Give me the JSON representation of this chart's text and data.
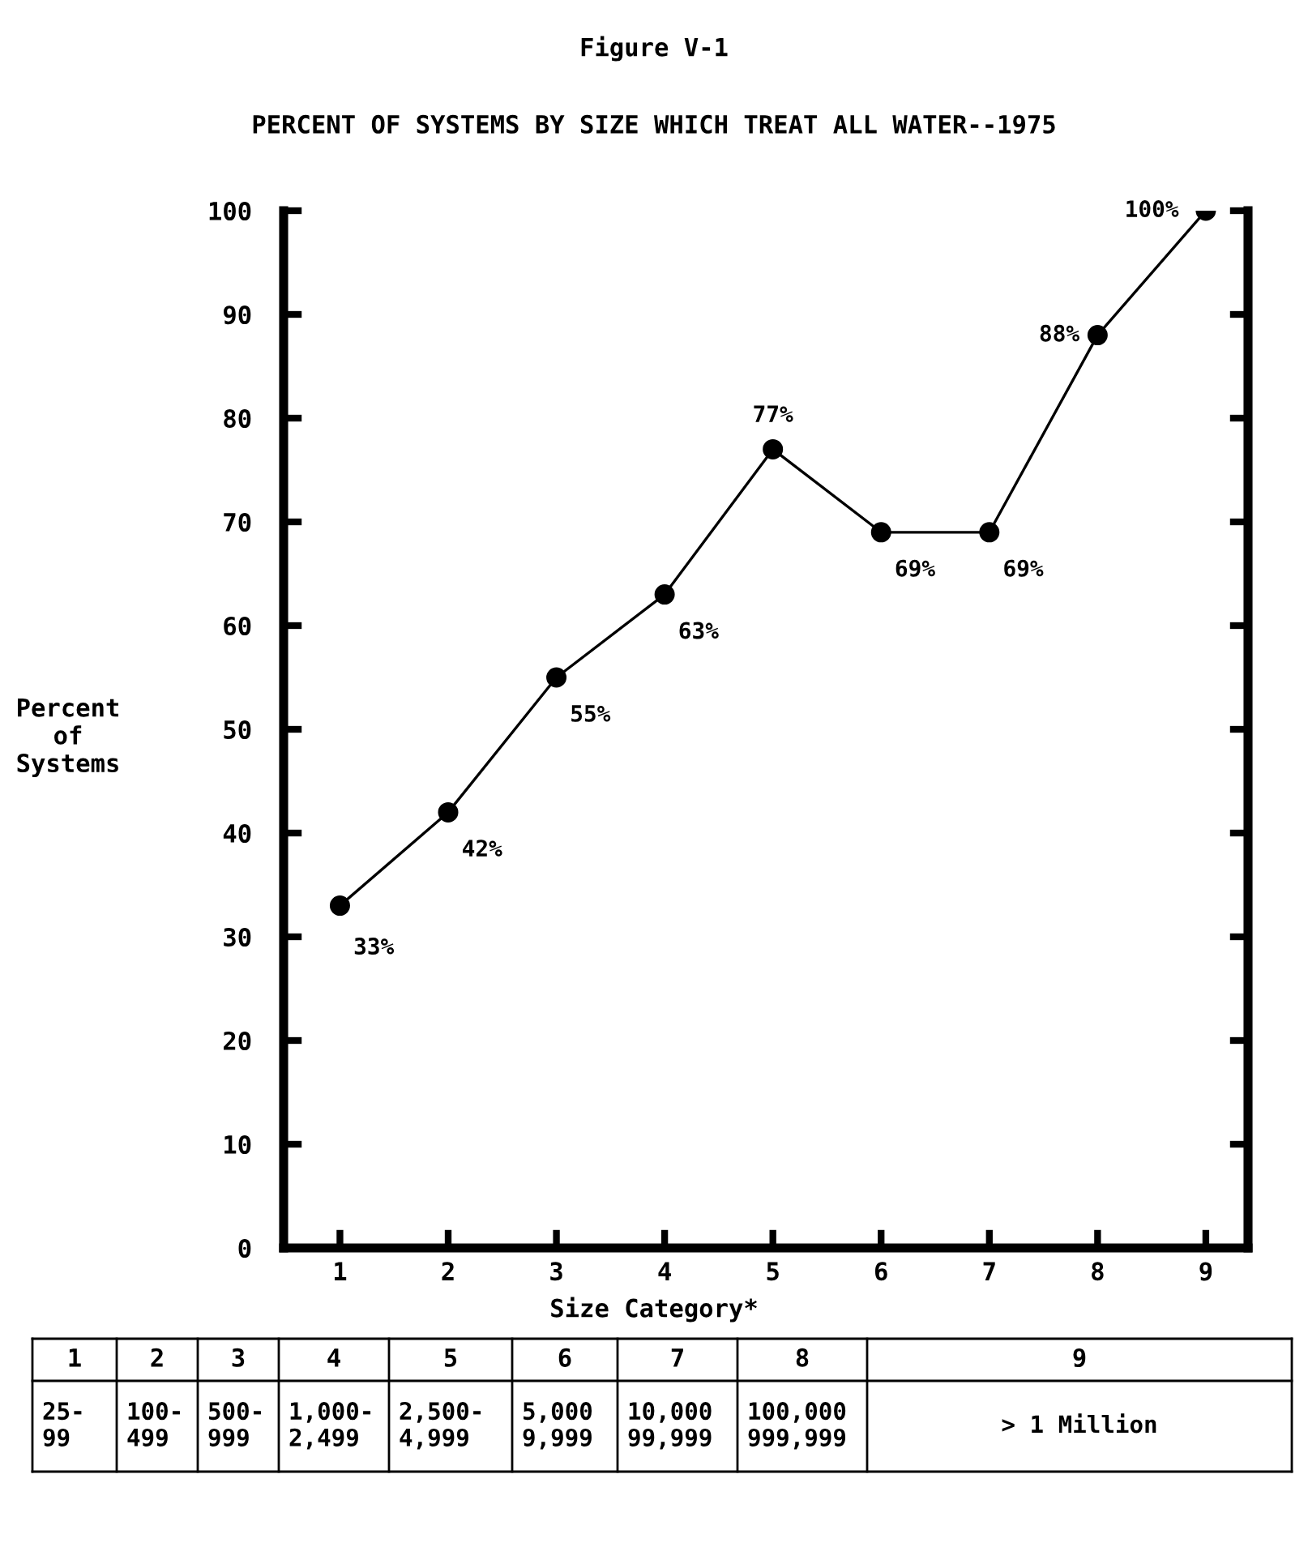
{
  "chart_data": {
    "type": "line",
    "title": "Figure V-1",
    "subtitle": "PERCENT OF SYSTEMS BY SIZE WHICH TREAT ALL WATER--1975",
    "xlabel": "Size Category*",
    "ylabel": "Percent\nof\nSystems",
    "categories": [
      "1",
      "2",
      "3",
      "4",
      "5",
      "6",
      "7",
      "8",
      "9"
    ],
    "series": [
      {
        "color": "#000000",
        "values": [
          33,
          42,
          55,
          63,
          77,
          69,
          69,
          88,
          100
        ],
        "value_labels": [
          "33%",
          "42%",
          "55%",
          "63%",
          "77%",
          "69%",
          "69%",
          "88%",
          "100%"
        ]
      }
    ],
    "ylim": [
      0,
      100
    ],
    "yticks": [
      0,
      10,
      20,
      30,
      40,
      50,
      60,
      70,
      80,
      90,
      100
    ],
    "marker": "circle",
    "line_style": "solid",
    "grid": false,
    "legend": false,
    "annotations": [
      "25-\n99",
      "100-\n499",
      "500-\n999",
      "1,000-\n2,499",
      "2,500-\n4,999",
      "5,000\n9,999",
      "10,000\n99,999",
      "100,000\n999,999",
      "> 1 Million"
    ]
  }
}
